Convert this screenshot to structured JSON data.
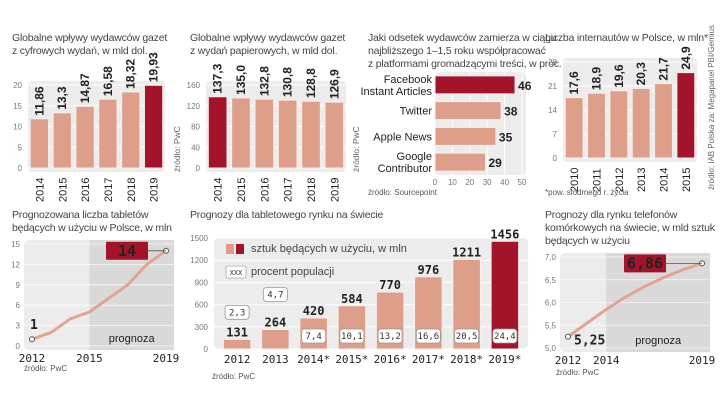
{
  "colors": {
    "bar": "#dd9e8a",
    "highlight": "#a3132a",
    "plotbg": "#ececec",
    "forecastbg": "#d9d9d9",
    "line": "#e2a48f"
  },
  "chart_data": [
    {
      "id": "digital",
      "type": "bar",
      "title": "Globalne wpływy wydawców gazet z cyfrowych wydań, w mld dol.",
      "title_lines": [
        "Globalne wpływy wydawców gazet",
        "z cyfrowych wydań, w mld dol."
      ],
      "categories": [
        "2014",
        "2015",
        "2016",
        "2017",
        "2018",
        "2019"
      ],
      "values": [
        11.86,
        13.3,
        14.87,
        16.58,
        18.32,
        19.93
      ],
      "value_labels": [
        "11,86",
        "13,3",
        "14,87",
        "16,58",
        "18,32",
        "19,93"
      ],
      "highlight_index": 5,
      "ylim": [
        0,
        20
      ],
      "yticks": [
        "0",
        "5",
        "10",
        "15",
        "20"
      ],
      "source": "źródło: PwC"
    },
    {
      "id": "print",
      "type": "bar",
      "title": "Globalne wpływy wydawców gazet z wydań papierowych, w mld dol.",
      "title_lines": [
        "Globalne wpływy wydawców gazet",
        "z wydań papierowych, w mld dol."
      ],
      "categories": [
        "2014",
        "2015",
        "2016",
        "2017",
        "2018",
        "2019"
      ],
      "values": [
        137.3,
        135.0,
        132.8,
        130.8,
        128.8,
        126.9
      ],
      "value_labels": [
        "137,3",
        "135,0",
        "132,8",
        "130,8",
        "128,8",
        "126,9"
      ],
      "highlight_index": 0,
      "ylim": [
        0,
        160
      ],
      "yticks": [
        "0",
        "40",
        "80",
        "120",
        "160"
      ],
      "source": "źródło: PwC"
    },
    {
      "id": "platforms",
      "type": "bar",
      "orientation": "horizontal",
      "title": "Jaki odsetek wydawców zamierza w ciągu najbliższego 1–1,5 roku współpracować z platformami gromadzącymi treści, w proc.",
      "title_lines": [
        "Jaki odsetek wydawców zamierza w ciągu",
        "najbliższego 1–1,5 roku współpracować",
        "z platformami gromadzącymi treści, w proc."
      ],
      "categories": [
        [
          "Facebook",
          "Instant Articles"
        ],
        [
          "Twitter"
        ],
        [
          "Apple News"
        ],
        [
          "Google",
          "Contributor"
        ]
      ],
      "values": [
        46,
        38,
        35,
        29
      ],
      "value_labels": [
        "46",
        "38",
        "35",
        "29"
      ],
      "highlight_index": 0,
      "xlim": [
        0,
        50
      ],
      "xticks": [
        "0",
        "10",
        "20",
        "30",
        "40",
        "50"
      ],
      "source": "źródło: Sourcepoint"
    },
    {
      "id": "internet",
      "type": "bar",
      "title": "Liczba internautów w Polsce, w mln*",
      "categories": [
        "2010",
        "2011",
        "2012",
        "2013",
        "2014",
        "2015"
      ],
      "values": [
        17.6,
        18.9,
        19.6,
        20.3,
        21.7,
        24.9
      ],
      "value_labels": [
        "17,6",
        "18,9",
        "19,6",
        "20,3",
        "21,7",
        "24,9"
      ],
      "highlight_index": 5,
      "ylim": [
        0,
        28
      ],
      "yticks": [
        "0",
        "7",
        "14",
        "21",
        "28"
      ],
      "source": "źródło: IAB Polska za: Megapanel PBI/Gemius",
      "footnote": "*pow. siódmego r. życia"
    },
    {
      "id": "tablets_pl",
      "type": "line",
      "title": "Prognozowana liczba tabletów będących w użyciu w Polsce, w mln",
      "title_lines": [
        "Prognozowana liczba tabletów",
        "będących w użyciu w Polsce, w mln"
      ],
      "x": [
        2012,
        2013,
        2014,
        2015,
        2016,
        2017,
        2018,
        2019
      ],
      "values": [
        1,
        2,
        4,
        5,
        7,
        9,
        12,
        14
      ],
      "xticks": [
        "2012",
        "2015",
        "2019"
      ],
      "ylim": [
        0,
        15
      ],
      "yticks": [
        "0",
        "3",
        "6",
        "9",
        "12",
        "15"
      ],
      "forecast_from": 2015,
      "forecast_label": "prognoza",
      "start_label": "1",
      "end_label": "14",
      "source": "źródło: PwC"
    },
    {
      "id": "tablets_world",
      "type": "bar",
      "title": "Prognozy dla tabletowego rynku na świecie",
      "categories": [
        "2012",
        "2013",
        "2014*",
        "2015*",
        "2016*",
        "2017*",
        "2018*",
        "2019*"
      ],
      "values": [
        131,
        264,
        420,
        584,
        770,
        976,
        1211,
        1456
      ],
      "value_labels": [
        "131",
        "264",
        "420",
        "584",
        "770",
        "976",
        "1211",
        "1456"
      ],
      "percent_labels": [
        "2,3",
        "4,7",
        "7,4",
        "10,1",
        "13,2",
        "16,6",
        "20,5",
        "24,4"
      ],
      "highlight_index": 7,
      "ylim": [
        0,
        1500
      ],
      "yticks": [
        "0",
        "300",
        "600",
        "900",
        "1200",
        "1500"
      ],
      "legend": [
        {
          "label": "sztuk będących w użyciu, w mln",
          "symbol": "bars"
        },
        {
          "label": "procent populacji",
          "symbol": "XXX"
        }
      ],
      "source": "źródło: PwC"
    },
    {
      "id": "phones_world",
      "type": "line",
      "title": "Prognozy dla rynku telefonów komórkowych na świecie, w mld sztuk będących w użyciu",
      "title_lines": [
        "Prognozy dla rynku telefonów",
        "komórkowych na świecie, w mld sztuk",
        "będących w użyciu"
      ],
      "x": [
        2012,
        2013,
        2014,
        2015,
        2016,
        2017,
        2018,
        2019
      ],
      "values": [
        5.25,
        5.55,
        5.85,
        6.12,
        6.35,
        6.55,
        6.72,
        6.86
      ],
      "xticks": [
        "2012",
        "2014",
        "2019"
      ],
      "ylim": [
        5.0,
        7.0
      ],
      "yticks": [
        "5,0",
        "5,5",
        "6,0",
        "6,5",
        "7,0"
      ],
      "forecast_from": 2014,
      "forecast_label": "prognoza",
      "start_label": "5,25",
      "end_label": "6,86",
      "source": "źródło: PwC"
    }
  ]
}
